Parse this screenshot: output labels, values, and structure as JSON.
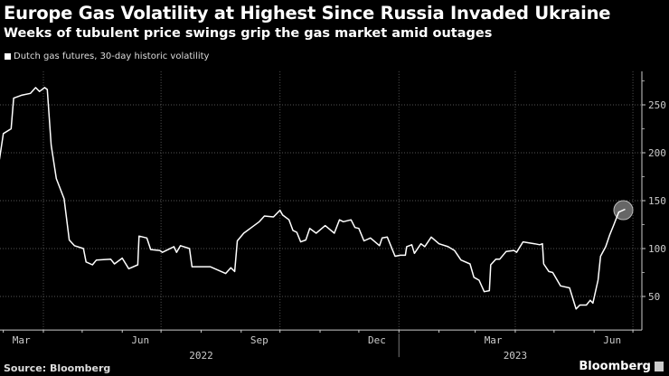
{
  "title": "Europe Gas Volatility at Highest Since Russia Invaded Ukraine",
  "subtitle": "Weeks of tubulent price swings grip the gas market amid outages",
  "source": "Source: Bloomberg",
  "brand": "Bloomberg",
  "colors": {
    "background": "#000000",
    "line": "#ffffff",
    "grid": "#444444",
    "highlight": "#888888"
  },
  "chart_data": {
    "type": "line",
    "title": "Europe Gas Volatility at Highest Since Russia Invaded Ukraine",
    "subtitle": "Weeks of tubulent price swings grip the gas market amid outages",
    "legend": [
      "Dutch gas futures, 30-day historic volatility"
    ],
    "legend_placement": "top-left",
    "grid": true,
    "y_axis_side": "right",
    "ylim": [
      15,
      285
    ],
    "yticks": [
      50,
      100,
      150,
      200,
      250
    ],
    "xlim": [
      "2022-02-26",
      "2023-06-30"
    ],
    "xtick_labels": [
      "Mar",
      "Jun",
      "Sep",
      "Dec",
      "Mar",
      "Jun"
    ],
    "xtick_dates": [
      "2022-03-15",
      "2022-06-15",
      "2022-09-15",
      "2022-12-15",
      "2023-03-15",
      "2023-06-15"
    ],
    "year_labels": [
      "2022",
      "2023"
    ],
    "highlight_last_point": true,
    "series": [
      {
        "name": "Dutch gas futures, 30-day historic volatility",
        "x": [
          "2022-02-26",
          "2022-03-01",
          "2022-03-07",
          "2022-03-09",
          "2022-03-15",
          "2022-03-22",
          "2022-03-26",
          "2022-03-29",
          "2022-04-02",
          "2022-04-04",
          "2022-04-07",
          "2022-04-11",
          "2022-04-17",
          "2022-04-21",
          "2022-04-25",
          "2022-05-02",
          "2022-05-04",
          "2022-05-09",
          "2022-05-12",
          "2022-05-23",
          "2022-05-26",
          "2022-06-01",
          "2022-06-06",
          "2022-06-13",
          "2022-06-14",
          "2022-06-20",
          "2022-06-23",
          "2022-06-30",
          "2022-07-02",
          "2022-07-11",
          "2022-07-13",
          "2022-07-16",
          "2022-07-23",
          "2022-07-25",
          "2022-08-08",
          "2022-08-20",
          "2022-08-24",
          "2022-08-27",
          "2022-08-29",
          "2022-09-03",
          "2022-09-08",
          "2022-09-15",
          "2022-09-19",
          "2022-09-26",
          "2022-10-01",
          "2022-10-03",
          "2022-10-08",
          "2022-10-11",
          "2022-10-14",
          "2022-10-17",
          "2022-10-21",
          "2022-10-24",
          "2022-10-29",
          "2022-11-05",
          "2022-11-12",
          "2022-11-16",
          "2022-11-19",
          "2022-11-25",
          "2022-11-28",
          "2022-12-01",
          "2022-12-05",
          "2022-12-10",
          "2022-12-17",
          "2022-12-19",
          "2022-12-23",
          "2022-12-29",
          "2023-01-02",
          "2023-01-06",
          "2023-01-07",
          "2023-01-11",
          "2023-01-13",
          "2023-01-18",
          "2023-01-21",
          "2023-01-26",
          "2023-02-01",
          "2023-02-08",
          "2023-02-13",
          "2023-02-18",
          "2023-02-25",
          "2023-02-28",
          "2023-03-04",
          "2023-03-08",
          "2023-03-12",
          "2023-03-13",
          "2023-03-17",
          "2023-03-20",
          "2023-03-25",
          "2023-03-31",
          "2023-04-02",
          "2023-04-07",
          "2023-04-16",
          "2023-04-20",
          "2023-04-22",
          "2023-04-23",
          "2023-04-27",
          "2023-04-30",
          "2023-05-06",
          "2023-05-13",
          "2023-05-18",
          "2023-05-21",
          "2023-05-26",
          "2023-05-29",
          "2023-05-31",
          "2023-06-04",
          "2023-06-06",
          "2023-06-10",
          "2023-06-13",
          "2023-06-16",
          "2023-06-20",
          "2023-06-25"
        ],
        "values": [
          193,
          220,
          225,
          257,
          260,
          262,
          268,
          264,
          268,
          266,
          208,
          173,
          152,
          109,
          103,
          100,
          86,
          83,
          88,
          89,
          84,
          90,
          79,
          83,
          113,
          111,
          99,
          98,
          96,
          102,
          96,
          103,
          100,
          81,
          81,
          74,
          80,
          76,
          108,
          116,
          121,
          128,
          134,
          133,
          140,
          135,
          130,
          119,
          117,
          107,
          109,
          121,
          116,
          124,
          116,
          130,
          128,
          130,
          122,
          121,
          108,
          111,
          103,
          111,
          112,
          92,
          93,
          93,
          102,
          104,
          95,
          105,
          102,
          112,
          105,
          102,
          98,
          88,
          84,
          70,
          67,
          55,
          56,
          83,
          89,
          89,
          97,
          98,
          96,
          107,
          105,
          104,
          105,
          84,
          76,
          75,
          61,
          59,
          37,
          41,
          41,
          46,
          43,
          67,
          92,
          102,
          114,
          124,
          138,
          141
        ]
      }
    ]
  }
}
